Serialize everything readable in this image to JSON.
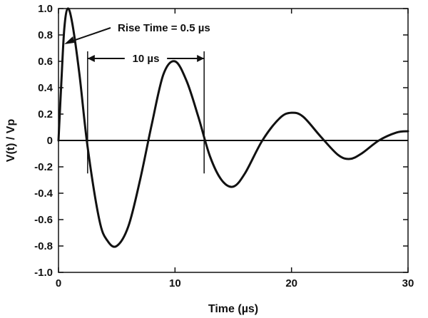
{
  "chart_data": {
    "type": "line",
    "xlabel": "Time (µs)",
    "ylabel": "V(t) / Vp",
    "xlim": [
      0,
      30
    ],
    "ylim": [
      -1.0,
      1.0
    ],
    "x_ticks": [
      "0",
      "10",
      "20",
      "30"
    ],
    "y_ticks": [
      "1.0",
      "0.8",
      "0.6",
      "0.4",
      "0.2",
      "0",
      "-0.2",
      "-0.4",
      "-0.6",
      "-0.8",
      "-1.0"
    ],
    "grid": false,
    "series": [
      {
        "x": [
          0,
          0.25,
          0.5,
          0.8,
          1.2,
          1.8,
          2.5,
          3.5,
          4.2,
          5.0,
          6.0,
          7.0,
          8.0,
          9.0,
          10.0,
          11.0,
          12.0,
          13.0,
          14.0,
          15.0,
          16.0,
          17.5,
          19.0,
          20.0,
          21.0,
          22.5,
          24.0,
          25.0,
          26.0,
          27.5,
          29.0,
          30.0
        ],
        "y": [
          0,
          0.45,
          0.85,
          1.0,
          0.88,
          0.5,
          -0.05,
          -0.6,
          -0.76,
          -0.8,
          -0.65,
          -0.3,
          0.12,
          0.5,
          0.6,
          0.45,
          0.18,
          -0.12,
          -0.3,
          -0.35,
          -0.25,
          0.0,
          0.17,
          0.21,
          0.18,
          0.03,
          -0.11,
          -0.14,
          -0.1,
          0.0,
          0.06,
          0.07
        ]
      }
    ],
    "annotations": [
      {
        "text": "Rise Time = 0.5 µs",
        "points_to_x": 0.5,
        "points_to_y": 0.73
      },
      {
        "text": "10 µs",
        "span_x": [
          2.5,
          12.5
        ]
      }
    ]
  }
}
